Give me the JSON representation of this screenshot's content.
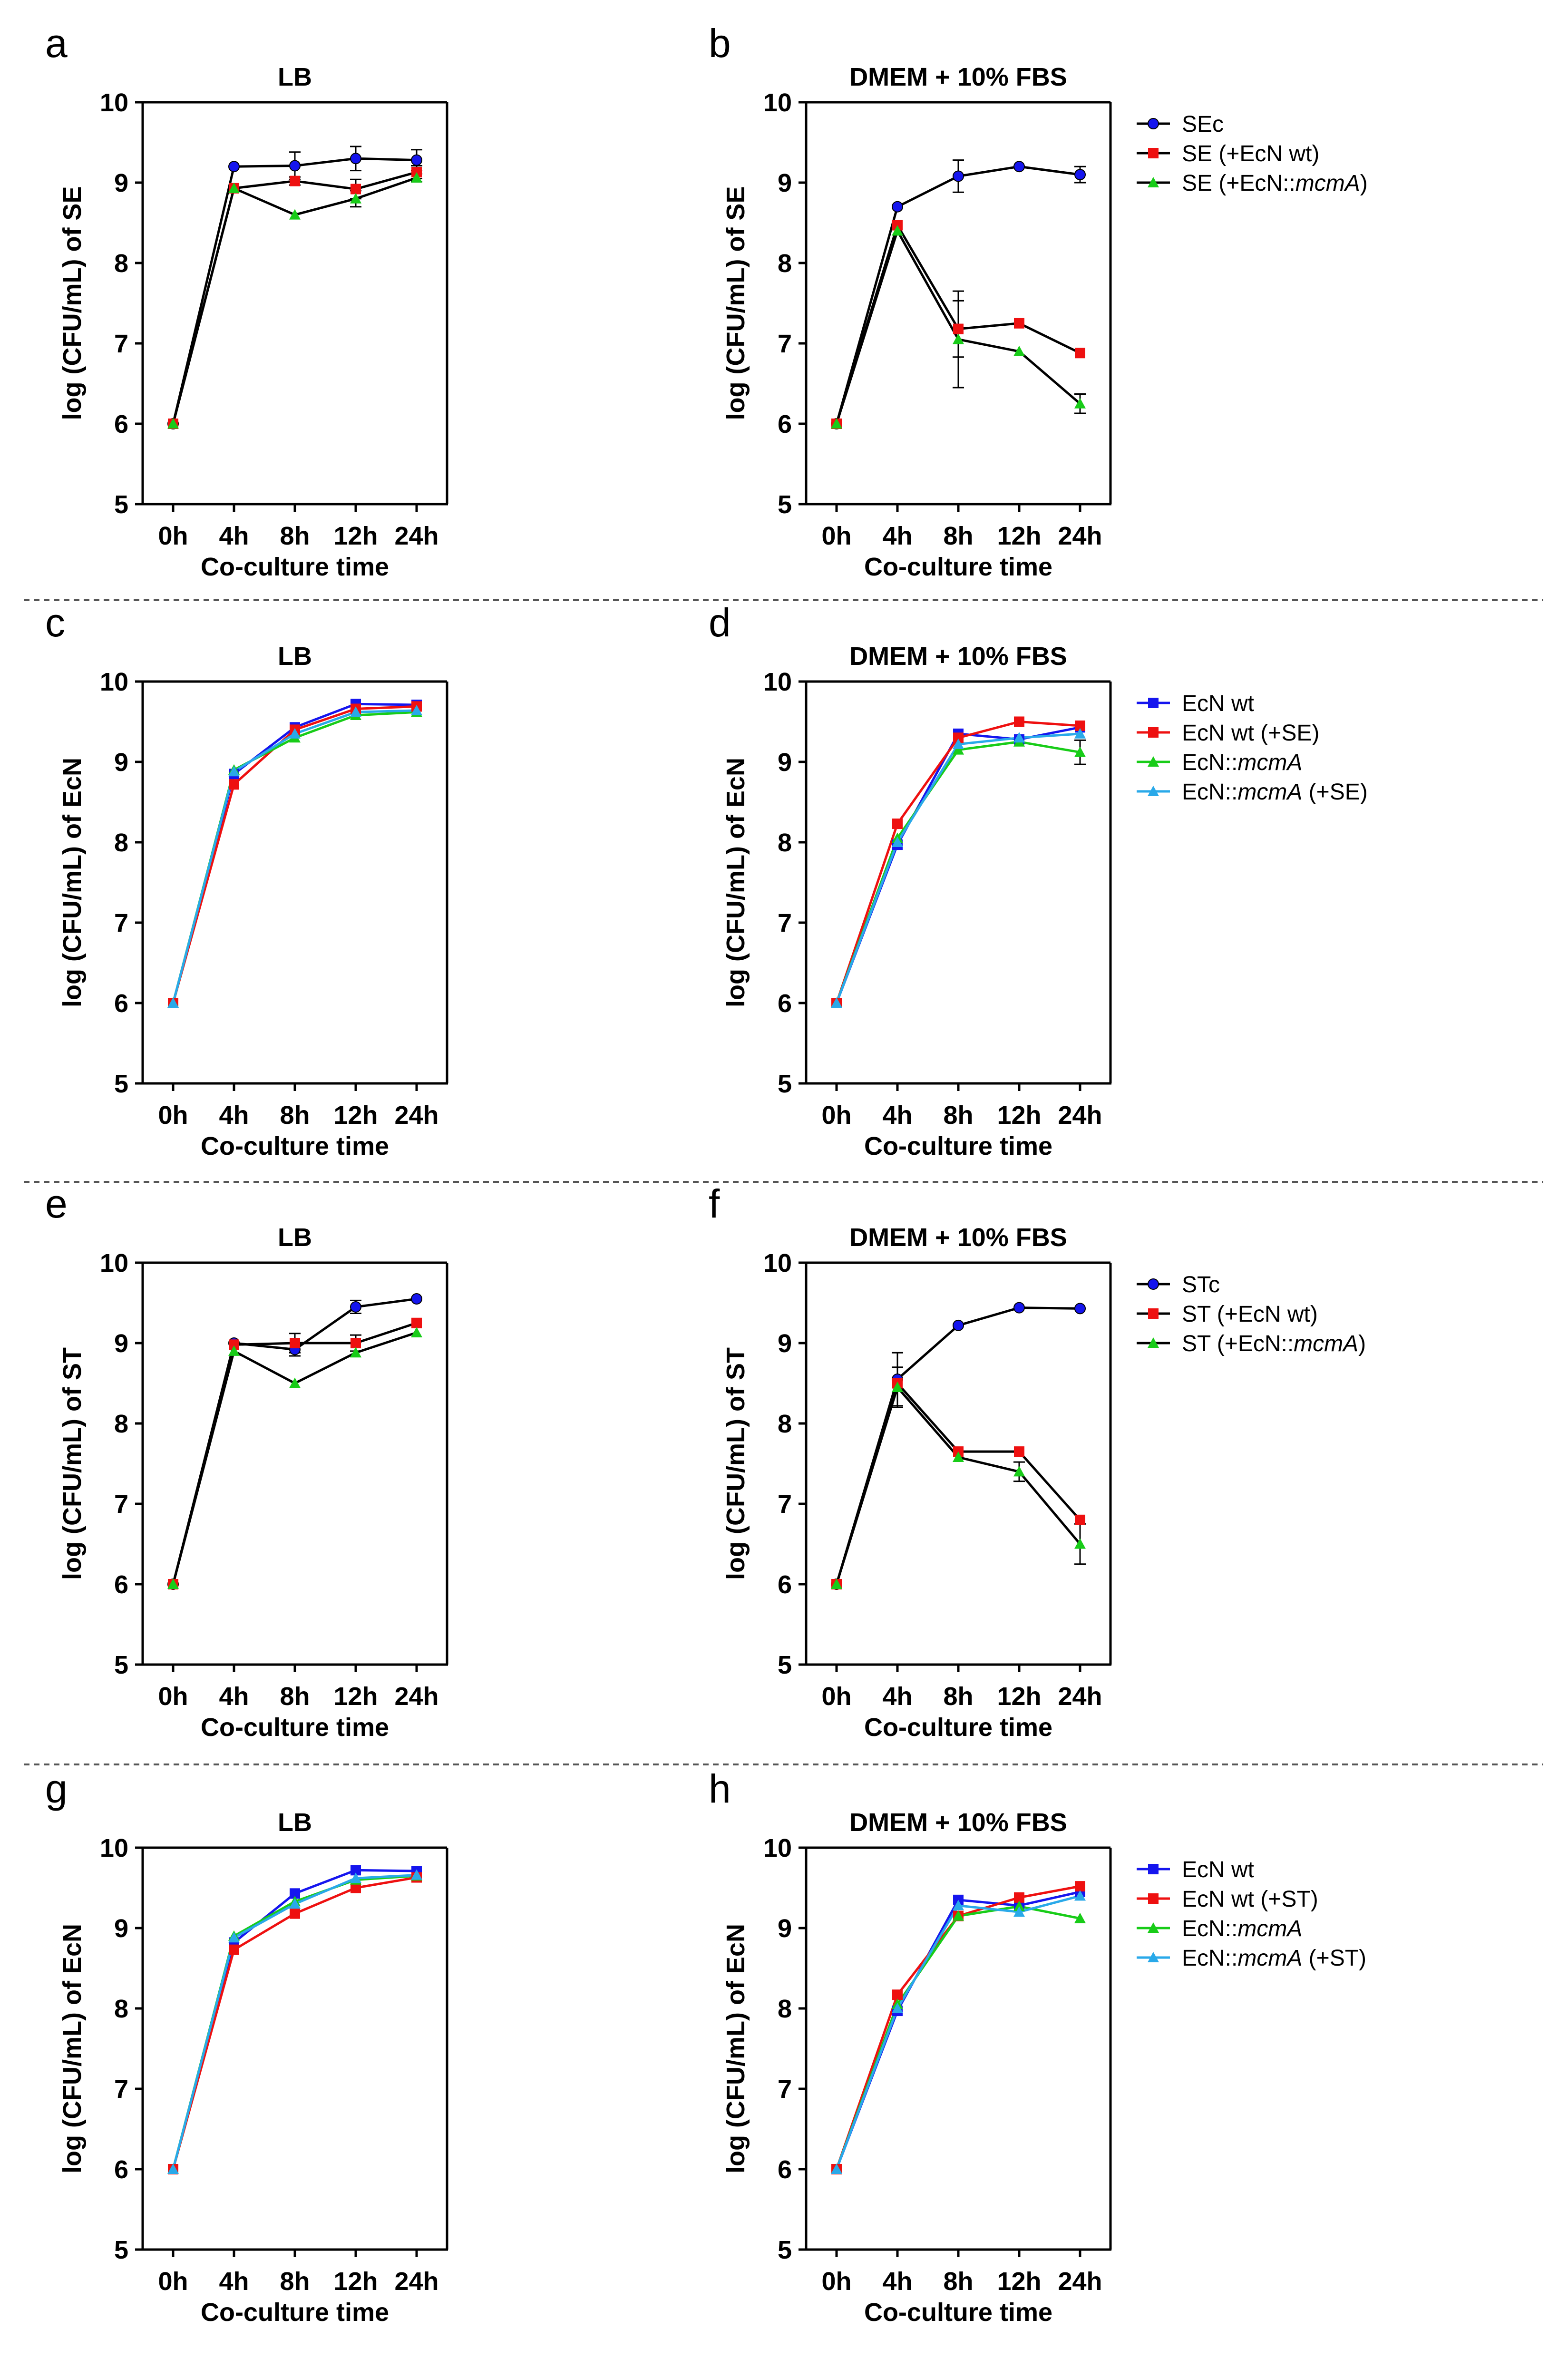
{
  "figure": {
    "background": "#ffffff",
    "divider_color": "#555555"
  },
  "chart_data": [
    {
      "panel": "a",
      "type": "line",
      "title": "LB",
      "xlabel": "Co-culture time",
      "ylabel": "log (CFU/mL) of SE",
      "categories": [
        "0h",
        "4h",
        "8h",
        "12h",
        "24h"
      ],
      "ylim": [
        5,
        10
      ],
      "yticks": [
        5,
        6,
        7,
        8,
        9,
        10
      ],
      "legend": "none",
      "series": [
        {
          "name": "SEc",
          "color": "#1515ee",
          "line_color": "#000000",
          "marker": "circle",
          "values": [
            6.0,
            9.2,
            9.21,
            9.3,
            9.28
          ],
          "errors": [
            0,
            0,
            0.17,
            0.15,
            0.13
          ]
        },
        {
          "name": "SE (+EcN wt)",
          "color": "#ee1010",
          "line_color": "#000000",
          "marker": "square",
          "values": [
            6.0,
            8.93,
            9.02,
            8.92,
            9.13
          ],
          "errors": [
            0,
            0,
            0.05,
            0.12,
            0.08
          ]
        },
        {
          "name": "SE (+EcN::mcmA)",
          "color": "#18cc18",
          "line_color": "#000000",
          "marker": "triangle",
          "values": [
            6.0,
            8.93,
            8.6,
            8.8,
            9.06
          ],
          "errors": [
            0,
            0,
            0,
            0.1,
            0.05
          ]
        }
      ]
    },
    {
      "panel": "b",
      "type": "line",
      "title": "DMEM + 10% FBS",
      "xlabel": "Co-culture time",
      "ylabel": "log (CFU/mL) of SE",
      "categories": [
        "0h",
        "4h",
        "8h",
        "12h",
        "24h"
      ],
      "ylim": [
        5,
        10
      ],
      "yticks": [
        5,
        6,
        7,
        8,
        9,
        10
      ],
      "legend": "right",
      "series": [
        {
          "name": "SEc",
          "color": "#1515ee",
          "line_color": "#000000",
          "marker": "circle",
          "values": [
            6.0,
            8.7,
            9.08,
            9.2,
            9.1
          ],
          "errors": [
            0,
            0,
            0.2,
            0,
            0.1
          ]
        },
        {
          "name": "SE (+EcN wt)",
          "color": "#ee1010",
          "line_color": "#000000",
          "marker": "square",
          "values": [
            6.0,
            8.47,
            7.18,
            7.25,
            6.88
          ],
          "errors": [
            0,
            0,
            0.35,
            0,
            0
          ]
        },
        {
          "name": "SE (+EcN::mcmA)",
          "color": "#18cc18",
          "line_color": "#000000",
          "marker": "triangle",
          "values": [
            6.0,
            8.4,
            7.05,
            6.9,
            6.25
          ],
          "errors": [
            0,
            0,
            0.6,
            0,
            0.12
          ]
        }
      ]
    },
    {
      "panel": "c",
      "type": "line",
      "title": "LB",
      "xlabel": "Co-culture time",
      "ylabel": "log (CFU/mL) of EcN",
      "categories": [
        "0h",
        "4h",
        "8h",
        "12h",
        "24h"
      ],
      "ylim": [
        5,
        10
      ],
      "yticks": [
        5,
        6,
        7,
        8,
        9,
        10
      ],
      "legend": "none",
      "series": [
        {
          "name": "EcN wt",
          "color": "#1515ee",
          "line_color": "#1515ee",
          "marker": "square",
          "values": [
            6.0,
            8.85,
            9.43,
            9.72,
            9.71
          ],
          "errors": [
            0,
            0,
            0,
            0,
            0
          ]
        },
        {
          "name": "EcN wt (+SE)",
          "color": "#ee1010",
          "line_color": "#ee1010",
          "marker": "square",
          "values": [
            6.0,
            8.72,
            9.4,
            9.66,
            9.69
          ],
          "errors": [
            0,
            0,
            0,
            0,
            0
          ]
        },
        {
          "name": "EcN::mcmA",
          "color": "#18cc18",
          "line_color": "#18cc18",
          "marker": "triangle",
          "values": [
            6.0,
            8.9,
            9.3,
            9.58,
            9.62
          ],
          "errors": [
            0,
            0,
            0,
            0,
            0
          ]
        },
        {
          "name": "EcN::mcmA (+SE)",
          "color": "#29a9e9",
          "line_color": "#29a9e9",
          "marker": "triangle",
          "values": [
            6.0,
            8.88,
            9.35,
            9.62,
            9.64
          ],
          "errors": [
            0,
            0,
            0,
            0,
            0
          ]
        }
      ]
    },
    {
      "panel": "d",
      "type": "line",
      "title": "DMEM + 10% FBS",
      "xlabel": "Co-culture time",
      "ylabel": "log (CFU/mL) of EcN",
      "categories": [
        "0h",
        "4h",
        "8h",
        "12h",
        "24h"
      ],
      "ylim": [
        5,
        10
      ],
      "yticks": [
        5,
        6,
        7,
        8,
        9,
        10
      ],
      "legend": "right",
      "series": [
        {
          "name": "EcN wt",
          "color": "#1515ee",
          "line_color": "#1515ee",
          "marker": "square",
          "values": [
            6.0,
            7.97,
            9.35,
            9.28,
            9.43
          ],
          "errors": [
            0,
            0,
            0,
            0,
            0
          ]
        },
        {
          "name": "EcN wt (+SE)",
          "color": "#ee1010",
          "line_color": "#ee1010",
          "marker": "square",
          "values": [
            6.0,
            8.23,
            9.3,
            9.5,
            9.45
          ],
          "errors": [
            0,
            0,
            0,
            0,
            0
          ]
        },
        {
          "name": "EcN::mcmA",
          "color": "#18cc18",
          "line_color": "#18cc18",
          "marker": "triangle",
          "values": [
            6.0,
            8.05,
            9.15,
            9.25,
            9.12
          ],
          "errors": [
            0,
            0,
            0,
            0,
            0.15
          ]
        },
        {
          "name": "EcN::mcmA (+SE)",
          "color": "#29a9e9",
          "line_color": "#29a9e9",
          "marker": "triangle",
          "values": [
            6.0,
            8.0,
            9.22,
            9.3,
            9.35
          ],
          "errors": [
            0,
            0,
            0,
            0,
            0
          ]
        }
      ]
    },
    {
      "panel": "e",
      "type": "line",
      "title": "LB",
      "xlabel": "Co-culture time",
      "ylabel": "log (CFU/mL) of ST",
      "categories": [
        "0h",
        "4h",
        "8h",
        "12h",
        "24h"
      ],
      "ylim": [
        5,
        10
      ],
      "yticks": [
        5,
        6,
        7,
        8,
        9,
        10
      ],
      "legend": "none",
      "series": [
        {
          "name": "STc",
          "color": "#1515ee",
          "line_color": "#000000",
          "marker": "circle",
          "values": [
            6.0,
            9.0,
            8.92,
            9.45,
            9.55
          ],
          "errors": [
            0,
            0,
            0.08,
            0.08,
            0
          ]
        },
        {
          "name": "ST (+EcN wt)",
          "color": "#ee1010",
          "line_color": "#000000",
          "marker": "square",
          "values": [
            6.0,
            8.98,
            9.0,
            9.0,
            9.25
          ],
          "errors": [
            0,
            0,
            0.12,
            0.1,
            0
          ]
        },
        {
          "name": "ST (+EcN::mcmA)",
          "color": "#18cc18",
          "line_color": "#000000",
          "marker": "triangle",
          "values": [
            6.0,
            8.9,
            8.5,
            8.88,
            9.13
          ],
          "errors": [
            0,
            0,
            0,
            0,
            0
          ]
        }
      ]
    },
    {
      "panel": "f",
      "type": "line",
      "title": "DMEM + 10% FBS",
      "xlabel": "Co-culture time",
      "ylabel": "log (CFU/mL) of ST",
      "categories": [
        "0h",
        "4h",
        "8h",
        "12h",
        "24h"
      ],
      "ylim": [
        5,
        10
      ],
      "yticks": [
        5,
        6,
        7,
        8,
        9,
        10
      ],
      "legend": "right",
      "series": [
        {
          "name": "STc",
          "color": "#1515ee",
          "line_color": "#000000",
          "marker": "circle",
          "values": [
            6.0,
            8.55,
            9.22,
            9.44,
            9.43
          ],
          "errors": [
            0,
            0.33,
            0,
            0,
            0
          ]
        },
        {
          "name": "ST (+EcN wt)",
          "color": "#ee1010",
          "line_color": "#000000",
          "marker": "square",
          "values": [
            6.0,
            8.5,
            7.65,
            7.65,
            6.8
          ],
          "errors": [
            0,
            0,
            0,
            0,
            0
          ]
        },
        {
          "name": "ST (+EcN::mcmA)",
          "color": "#18cc18",
          "line_color": "#000000",
          "marker": "triangle",
          "values": [
            6.0,
            8.45,
            7.58,
            7.4,
            6.5
          ],
          "errors": [
            0,
            0.25,
            0,
            0.12,
            0.25
          ]
        }
      ]
    },
    {
      "panel": "g",
      "type": "line",
      "title": "LB",
      "xlabel": "Co-culture time",
      "ylabel": "log (CFU/mL) of EcN",
      "categories": [
        "0h",
        "4h",
        "8h",
        "12h",
        "24h"
      ],
      "ylim": [
        5,
        10
      ],
      "yticks": [
        5,
        6,
        7,
        8,
        9,
        10
      ],
      "legend": "none",
      "series": [
        {
          "name": "EcN wt",
          "color": "#1515ee",
          "line_color": "#1515ee",
          "marker": "square",
          "values": [
            6.0,
            8.82,
            9.43,
            9.72,
            9.71
          ],
          "errors": [
            0,
            0,
            0,
            0,
            0
          ]
        },
        {
          "name": "EcN wt (+ST)",
          "color": "#ee1010",
          "line_color": "#ee1010",
          "marker": "square",
          "values": [
            6.0,
            8.73,
            9.18,
            9.5,
            9.63
          ],
          "errors": [
            0,
            0,
            0,
            0,
            0
          ]
        },
        {
          "name": "EcN::mcmA",
          "color": "#18cc18",
          "line_color": "#18cc18",
          "marker": "triangle",
          "values": [
            6.0,
            8.9,
            9.33,
            9.6,
            9.65
          ],
          "errors": [
            0,
            0,
            0,
            0,
            0
          ]
        },
        {
          "name": "EcN::mcmA (+ST)",
          "color": "#29a9e9",
          "line_color": "#29a9e9",
          "marker": "triangle",
          "values": [
            6.0,
            8.88,
            9.3,
            9.62,
            9.66
          ],
          "errors": [
            0,
            0,
            0,
            0,
            0
          ]
        }
      ]
    },
    {
      "panel": "h",
      "type": "line",
      "title": "DMEM + 10% FBS",
      "xlabel": "Co-culture time",
      "ylabel": "log (CFU/mL) of EcN",
      "categories": [
        "0h",
        "4h",
        "8h",
        "12h",
        "24h"
      ],
      "ylim": [
        5,
        10
      ],
      "yticks": [
        5,
        6,
        7,
        8,
        9,
        10
      ],
      "legend": "right",
      "series": [
        {
          "name": "EcN wt",
          "color": "#1515ee",
          "line_color": "#1515ee",
          "marker": "square",
          "values": [
            6.0,
            7.97,
            9.35,
            9.28,
            9.45
          ],
          "errors": [
            0,
            0,
            0,
            0,
            0
          ]
        },
        {
          "name": "EcN wt (+ST)",
          "color": "#ee1010",
          "line_color": "#ee1010",
          "marker": "square",
          "values": [
            6.0,
            8.17,
            9.15,
            9.38,
            9.52
          ],
          "errors": [
            0,
            0,
            0,
            0,
            0
          ]
        },
        {
          "name": "EcN::mcmA",
          "color": "#18cc18",
          "line_color": "#18cc18",
          "marker": "triangle",
          "values": [
            6.0,
            8.05,
            9.15,
            9.27,
            9.12
          ],
          "errors": [
            0,
            0,
            0,
            0,
            0
          ]
        },
        {
          "name": "EcN::mcmA (+ST)",
          "color": "#29a9e9",
          "line_color": "#29a9e9",
          "marker": "triangle",
          "values": [
            6.0,
            8.0,
            9.28,
            9.2,
            9.4
          ],
          "errors": [
            0,
            0,
            0,
            0,
            0
          ]
        }
      ]
    }
  ]
}
